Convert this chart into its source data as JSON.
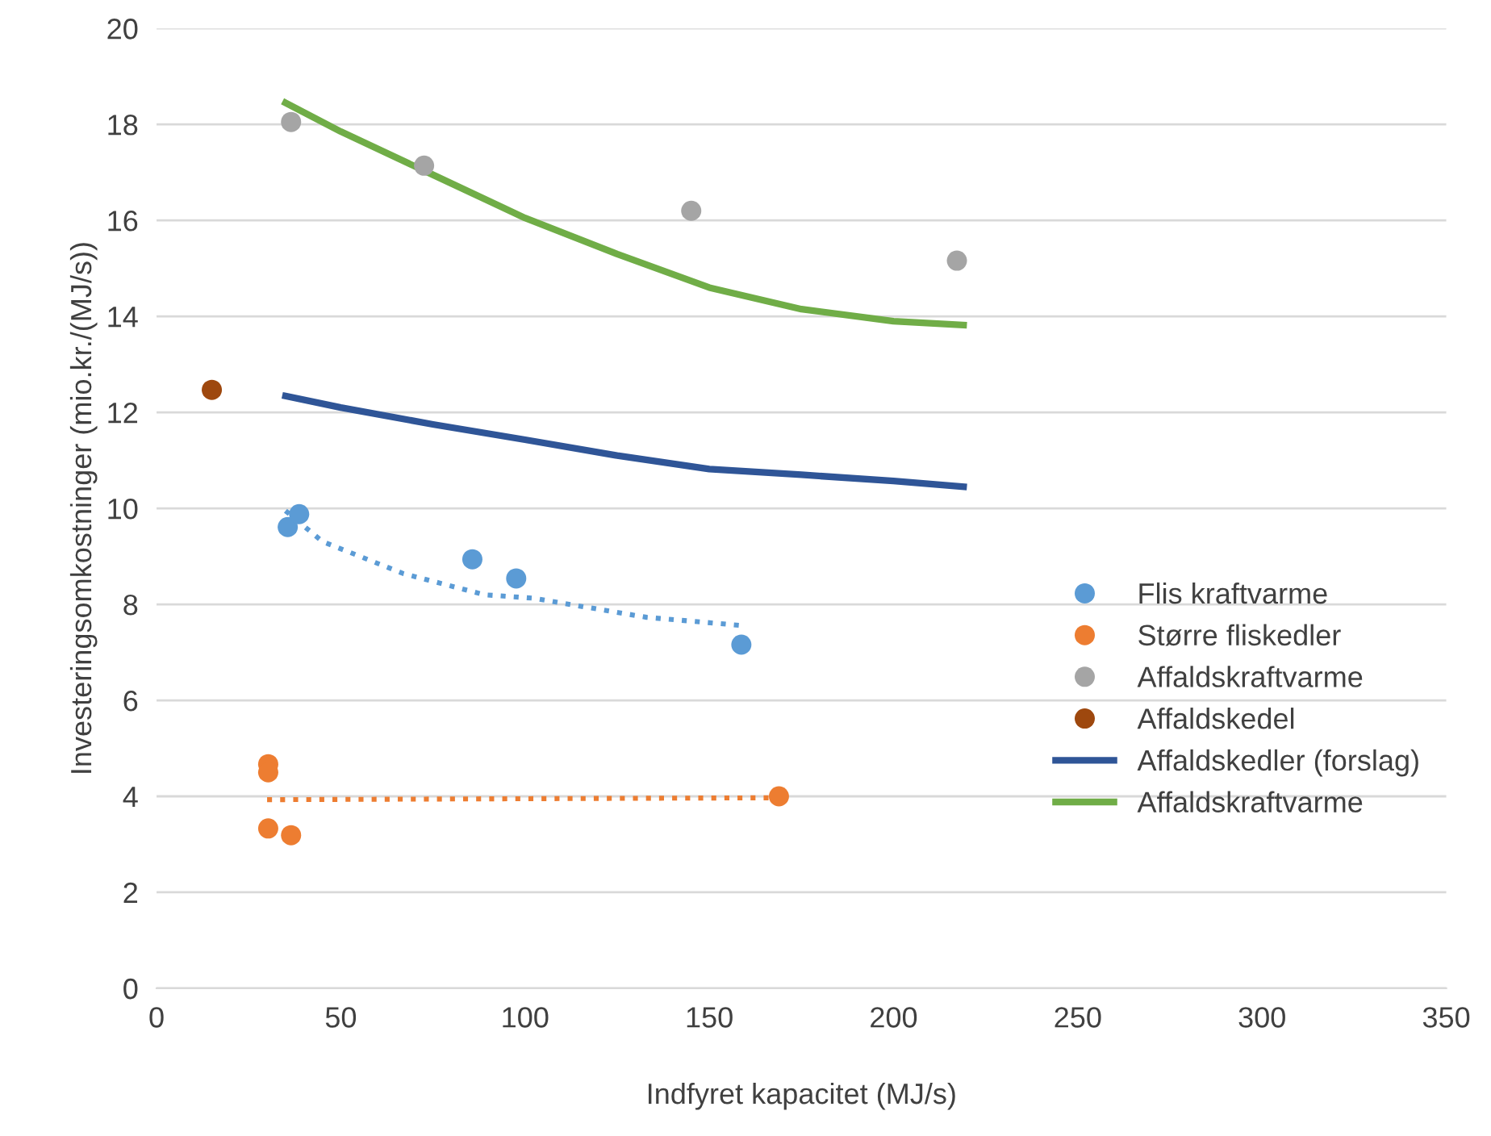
{
  "chart_data": {
    "type": "scatter",
    "xlabel": "Indfyret kapacitet (MJ/s)",
    "ylabel": "Investeringsomkostninger (mio.kr./(MJ/s))",
    "xlim": [
      0,
      350
    ],
    "xticks": [
      0,
      50,
      100,
      150,
      200,
      250,
      300,
      350
    ],
    "ylim": [
      0,
      20
    ],
    "yticks": [
      0,
      2,
      4,
      6,
      8,
      10,
      12,
      14,
      16,
      18,
      20
    ],
    "grid": "y",
    "legend": "right",
    "marker": "circle",
    "series": [
      {
        "name": "Flis kraftvarme",
        "color": "#5b9bd5",
        "x": [
          35.6,
          38.7,
          85.7,
          97.6,
          158.7
        ],
        "values": [
          9.61,
          9.88,
          8.94,
          8.54,
          7.16
        ]
      },
      {
        "name": "Større fliskedler",
        "color": "#ed7d31",
        "x": [
          30.3,
          30.3,
          30.3,
          36.5,
          168.9
        ],
        "values": [
          4.67,
          4.5,
          3.33,
          3.19,
          4.0
        ]
      },
      {
        "name": "Affaldskraftvarme",
        "color": "#a5a5a5",
        "x": [
          36.5,
          72.6,
          145.1,
          217.2
        ],
        "values": [
          18.05,
          17.14,
          16.2,
          15.16
        ]
      },
      {
        "name": "Affaldskedel",
        "color": "#9e480e",
        "x": [
          15.0
        ],
        "values": [
          12.47
        ]
      },
      {
        "name": "Affaldskedler (forslag)",
        "type": "line",
        "marker": "none",
        "color": "#2f5597",
        "x": [
          35,
          50,
          75,
          100,
          125,
          150,
          175,
          200,
          219
        ],
        "values": [
          12.34,
          12.1,
          11.75,
          11.43,
          11.1,
          10.82,
          10.7,
          10.57,
          10.45
        ]
      },
      {
        "name": "Affaldskraftvarme",
        "type": "line",
        "marker": "none",
        "color": "#70ad47",
        "x": [
          35,
          50,
          75,
          100,
          125,
          150,
          175,
          200,
          219
        ],
        "values": [
          18.45,
          17.85,
          16.95,
          16.05,
          15.3,
          14.6,
          14.15,
          13.9,
          13.82
        ]
      },
      {
        "type": "line",
        "marker": "none",
        "line_style": "dotted",
        "color": "#5b9bd5",
        "x": [
          35,
          45,
          67,
          89,
          102,
          133,
          158.7
        ],
        "values": [
          9.95,
          9.31,
          8.64,
          8.2,
          8.13,
          7.73,
          7.56
        ]
      },
      {
        "type": "line",
        "marker": "none",
        "line_style": "dotted",
        "color": "#ed7d31",
        "x": [
          30,
          168
        ],
        "values": [
          3.93,
          3.97
        ]
      }
    ]
  }
}
